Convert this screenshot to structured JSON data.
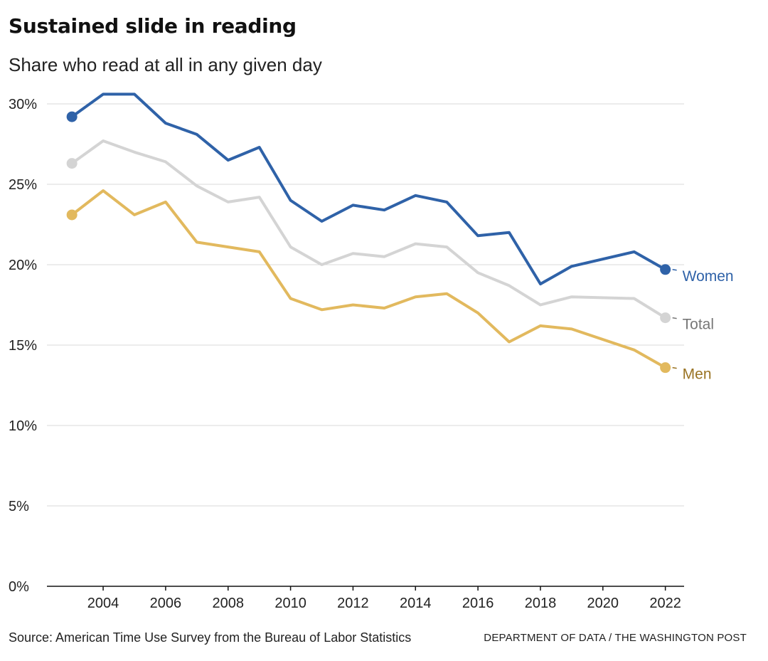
{
  "header": {
    "title": "Sustained slide in reading",
    "subtitle": "Share who read at all in any given day"
  },
  "footer": {
    "source": "Source: American Time Use Survey from the Bureau of Labor Statistics",
    "credit": "DEPARTMENT OF DATA / THE WASHINGTON POST"
  },
  "chart_data": {
    "type": "line",
    "title": "Sustained slide in reading",
    "subtitle": "Share who read at all in any given day",
    "xlabel": "",
    "ylabel": "",
    "x": [
      2003,
      2004,
      2005,
      2006,
      2007,
      2008,
      2009,
      2010,
      2011,
      2012,
      2013,
      2014,
      2015,
      2016,
      2017,
      2018,
      2019,
      2021,
      2022
    ],
    "xlim": [
      2002.2,
      2022.6
    ],
    "ylim": [
      0,
      30
    ],
    "x_ticks": [
      2004,
      2006,
      2008,
      2010,
      2012,
      2014,
      2016,
      2018,
      2020,
      2022
    ],
    "y_ticks": [
      {
        "value": 0,
        "label": "0%"
      },
      {
        "value": 5,
        "label": "5%"
      },
      {
        "value": 10,
        "label": "10%"
      },
      {
        "value": 15,
        "label": "15%"
      },
      {
        "value": 20,
        "label": "20%"
      },
      {
        "value": 25,
        "label": "25%"
      },
      {
        "value": 30,
        "label": "30%"
      }
    ],
    "grid": true,
    "legend": "direct labels at line ends",
    "series": [
      {
        "name": "Total",
        "color": "#d4d4d4",
        "label_color": "#777777",
        "values": [
          26.3,
          27.7,
          27.0,
          26.4,
          24.9,
          23.9,
          24.2,
          21.1,
          20.0,
          20.7,
          20.5,
          21.3,
          21.1,
          19.5,
          18.7,
          17.5,
          18.0,
          17.9,
          16.7
        ]
      },
      {
        "name": "Men",
        "color": "#e2b95e",
        "label_color": "#9a7424",
        "values": [
          23.1,
          24.6,
          23.1,
          23.9,
          21.4,
          21.1,
          20.8,
          17.9,
          17.2,
          17.5,
          17.3,
          18.0,
          18.2,
          17.0,
          15.2,
          16.2,
          16.0,
          14.7,
          13.6
        ]
      },
      {
        "name": "Women",
        "color": "#2f62a8",
        "label_color": "#2f62a8",
        "values": [
          29.2,
          30.6,
          30.6,
          28.8,
          28.1,
          26.5,
          27.3,
          24.0,
          22.7,
          23.7,
          23.4,
          24.3,
          23.9,
          21.8,
          22.0,
          18.8,
          19.9,
          20.8,
          19.7
        ]
      }
    ]
  }
}
